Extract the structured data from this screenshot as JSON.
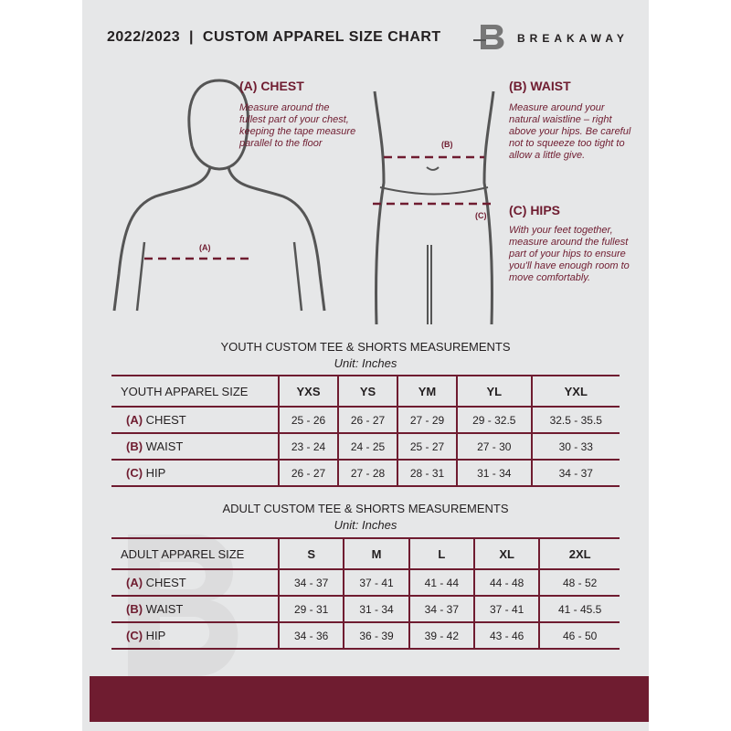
{
  "header": {
    "title": "2022/2023  |  CUSTOM APPAREL SIZE CHART",
    "brand": "BREAKAWAY"
  },
  "accent_color": "#6f1c30",
  "chest": {
    "heading": "(A) CHEST",
    "text": "Measure around the fullest part of your chest, keeping the tape measure parallel to the floor",
    "marker": "(A)"
  },
  "waist": {
    "heading": "(B) WAIST",
    "text": "Measure around your natural waistline – right above your hips. Be careful not to squeeze too tight to allow a little give.",
    "marker": "(B)"
  },
  "hips": {
    "heading": "(C) HIPS",
    "text": "With your feet together, measure around the fullest part of your hips to ensure you'll have enough room to move comfortably.",
    "marker": "(C)"
  },
  "youth": {
    "title": "YOUTH CUSTOM TEE & SHORTS MEASUREMENTS",
    "unit": "Unit: Inches",
    "size_label": "YOUTH APPAREL SIZE",
    "sizes": [
      "YXS",
      "YS",
      "YM",
      "YL",
      "YXL"
    ],
    "rows": [
      {
        "code": "(A)",
        "label": "CHEST",
        "values": [
          "25 - 26",
          "26 - 27",
          "27 - 29",
          "29 - 32.5",
          "32.5 - 35.5"
        ]
      },
      {
        "code": "(B)",
        "label": "WAIST",
        "values": [
          "23 - 24",
          "24 - 25",
          "25 - 27",
          "27 - 30",
          "30 - 33"
        ]
      },
      {
        "code": "(C)",
        "label": "HIP",
        "values": [
          "26 - 27",
          "27 - 28",
          "28 - 31",
          "31 - 34",
          "34 - 37"
        ]
      }
    ]
  },
  "adult": {
    "title": "ADULT CUSTOM TEE & SHORTS MEASUREMENTS",
    "unit": "Unit: Inches",
    "size_label": "ADULT APPAREL SIZE",
    "sizes": [
      "S",
      "M",
      "L",
      "XL",
      "2XL"
    ],
    "rows": [
      {
        "code": "(A)",
        "label": "CHEST",
        "values": [
          "34 - 37",
          "37 - 41",
          "41 - 44",
          "44 - 48",
          "48 - 52"
        ]
      },
      {
        "code": "(B)",
        "label": "WAIST",
        "values": [
          "29 - 31",
          "31 - 34",
          "34 - 37",
          "37 - 41",
          "41 - 45.5"
        ]
      },
      {
        "code": "(C)",
        "label": "HIP",
        "values": [
          "34 - 36",
          "36 - 39",
          "39 - 42",
          "43 - 46",
          "46 - 50"
        ]
      }
    ]
  }
}
